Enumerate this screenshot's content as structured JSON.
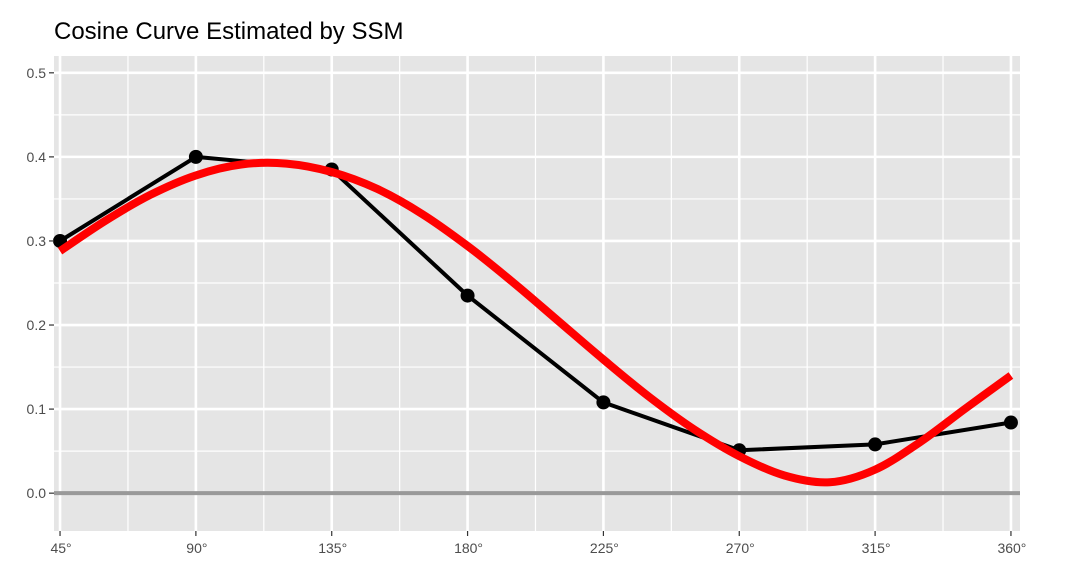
{
  "chart_data": {
    "type": "line",
    "title": "Cosine Curve Estimated by SSM",
    "xlabel": "",
    "ylabel": "",
    "xlim": [
      43,
      363
    ],
    "ylim": [
      -0.045,
      0.52
    ],
    "x_ticks": [
      45,
      90,
      135,
      180,
      225,
      270,
      315,
      360
    ],
    "x_tick_labels": [
      "45°",
      "90°",
      "135°",
      "180°",
      "225°",
      "270°",
      "315°",
      "360°"
    ],
    "y_ticks": [
      0.0,
      0.1,
      0.2,
      0.3,
      0.4,
      0.5
    ],
    "y_tick_labels": [
      "0.0",
      "0.1",
      "0.2",
      "0.3",
      "0.4",
      "0.5"
    ],
    "grid": true,
    "background": "#e5e5e5",
    "series": [
      {
        "style": "line-points",
        "color": "#000000",
        "x": [
          45,
          90,
          135,
          180,
          225,
          270,
          315,
          360
        ],
        "values": [
          0.3,
          0.4,
          0.385,
          0.235,
          0.108,
          0.051,
          0.058,
          0.084
        ]
      },
      {
        "style": "smooth-line",
        "color": "#ff0000",
        "x": [
          45,
          60,
          75,
          90,
          105,
          120,
          135,
          150,
          165,
          180,
          195,
          210,
          225,
          240,
          255,
          270,
          285,
          300,
          315,
          330,
          345,
          360
        ],
        "values": [
          0.288,
          0.324,
          0.355,
          0.378,
          0.391,
          0.392,
          0.382,
          0.362,
          0.332,
          0.294,
          0.251,
          0.205,
          0.159,
          0.115,
          0.076,
          0.044,
          0.021,
          0.013,
          0.028,
          0.061,
          0.101,
          0.14
        ]
      }
    ],
    "reference_lines": [
      {
        "y": 0.0,
        "color": "#999999"
      }
    ]
  }
}
